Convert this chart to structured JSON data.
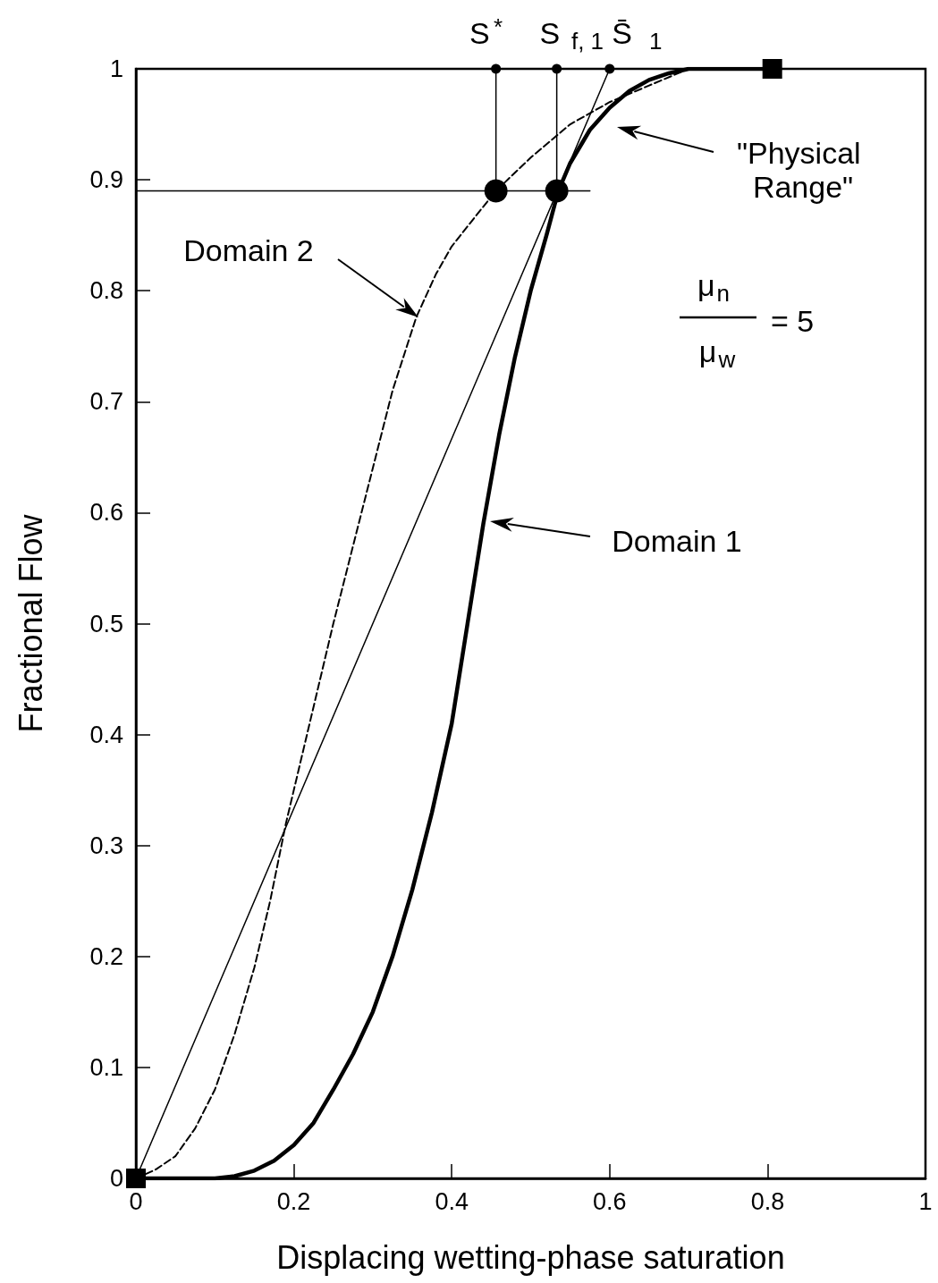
{
  "chart_data": {
    "type": "line",
    "xlabel": "Displacing wetting-phase saturation",
    "ylabel": "Fractional Flow",
    "xlim": [
      0,
      1
    ],
    "xticks": [
      0,
      0.2,
      0.4,
      0.6,
      0.8,
      1
    ],
    "ylim": [
      0,
      1
    ],
    "yticks": [
      0,
      0.1,
      0.2,
      0.3,
      0.4,
      0.5,
      0.6,
      0.7,
      0.8,
      0.9,
      1
    ],
    "grid": false,
    "series": [
      {
        "color": "#000000",
        "marker": "none",
        "line_style": "solid",
        "x": [
          0,
          0.1,
          0.125,
          0.15,
          0.175,
          0.2,
          0.225,
          0.25,
          0.275,
          0.3,
          0.325,
          0.35,
          0.375,
          0.4,
          0.42,
          0.44,
          0.46,
          0.48,
          0.5,
          0.52,
          0.535,
          0.55,
          0.575,
          0.6,
          0.625,
          0.65,
          0.675,
          0.7,
          0.8
        ],
        "values": [
          0,
          0,
          0.002,
          0.007,
          0.016,
          0.03,
          0.05,
          0.08,
          0.112,
          0.15,
          0.2,
          0.26,
          0.33,
          0.41,
          0.5,
          0.59,
          0.67,
          0.74,
          0.8,
          0.85,
          0.89,
          0.915,
          0.945,
          0.965,
          0.98,
          0.99,
          0.996,
          1,
          1
        ]
      },
      {
        "color": "#000000",
        "marker": "none",
        "line_style": "dashed",
        "x": [
          0,
          0.025,
          0.05,
          0.075,
          0.1,
          0.125,
          0.15,
          0.17,
          0.19,
          0.22,
          0.25,
          0.275,
          0.3,
          0.325,
          0.355,
          0.38,
          0.4,
          0.43,
          0.456,
          0.5,
          0.55,
          0.6,
          0.65,
          0.7
        ],
        "values": [
          0,
          0.008,
          0.02,
          0.045,
          0.08,
          0.13,
          0.19,
          0.25,
          0.32,
          0.41,
          0.5,
          0.57,
          0.64,
          0.71,
          0.776,
          0.815,
          0.84,
          0.867,
          0.89,
          0.92,
          0.95,
          0.97,
          0.985,
          1
        ]
      },
      {
        "color": "#000000",
        "marker": "none",
        "line_style": "solid",
        "x": [
          0,
          0.6
        ],
        "values": [
          0,
          1
        ]
      },
      {
        "color": "#000000",
        "marker": "none",
        "line_style": "solid",
        "x": [
          0,
          0.575
        ],
        "values": [
          0.89,
          0.89
        ]
      },
      {
        "color": "#000000",
        "marker": "none",
        "line_style": "solid",
        "x": [
          0.456,
          0.456
        ],
        "values": [
          0.89,
          1
        ]
      },
      {
        "color": "#000000",
        "marker": "none",
        "line_style": "solid",
        "x": [
          0.533,
          0.533
        ],
        "values": [
          0.89,
          1
        ]
      },
      {
        "type": "scatter",
        "color": "#000000",
        "marker": "circle",
        "x": [
          0.456,
          0.533
        ],
        "values": [
          0.89,
          0.89
        ]
      },
      {
        "type": "scatter",
        "color": "#000000",
        "marker": "circle",
        "x": [
          0.456,
          0.533,
          0.6
        ],
        "values": [
          1,
          1,
          1
        ]
      },
      {
        "type": "scatter",
        "color": "#000000",
        "marker": "square",
        "x": [
          0,
          0.806
        ],
        "values": [
          0,
          1
        ]
      }
    ],
    "annotations": [
      {
        "text": "S$^{*}$",
        "x": 0.456,
        "y": 1
      },
      {
        "text": "S$_{f, 1}$",
        "x": 0.533,
        "y": 1
      },
      {
        "text": "S̄$_{1}$",
        "x": 0.6,
        "y": 1
      },
      "Domain 2",
      "Domain 1",
      "\"Physical Range\"",
      "μ$_{n}$",
      "μ$_{w}$",
      "= 5"
    ]
  }
}
